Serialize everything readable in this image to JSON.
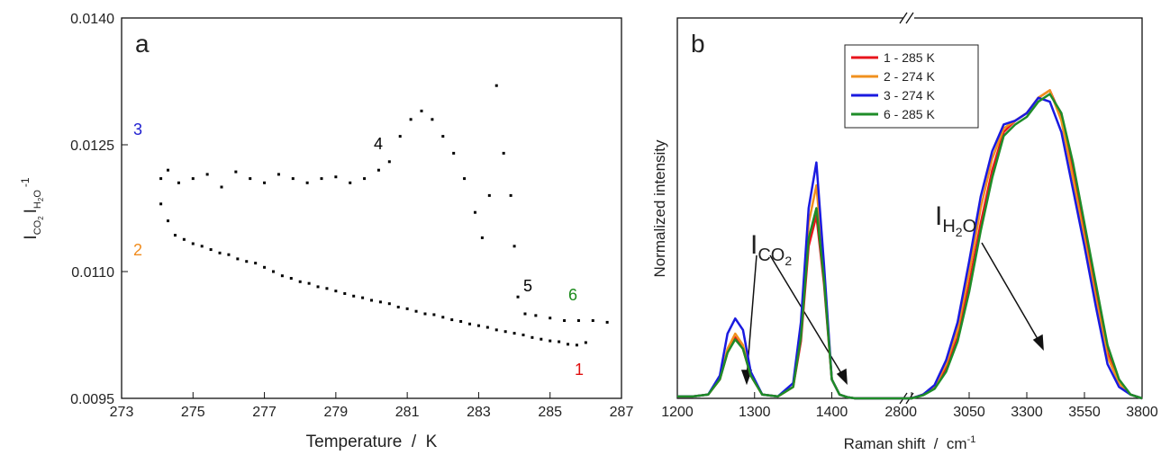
{
  "chart_data": [
    {
      "type": "scatter",
      "panel_label": "a",
      "xlabel": "Temperature  /  K",
      "ylabel_parts": [
        "I",
        "CO",
        "2",
        "I",
        "H",
        "2",
        "O",
        "-1"
      ],
      "xlim": [
        273,
        287
      ],
      "xticks": [
        273,
        275,
        277,
        279,
        281,
        283,
        285,
        287
      ],
      "ylim": [
        0.0095,
        0.014
      ],
      "yticks": [
        0.0095,
        {
          "value": 0.011,
          "label": "0.0110"
        },
        0.0125,
        {
          "value": 0.014,
          "label": "0.0140"
        }
      ],
      "series": [
        {
          "color": "#000000",
          "x": [
            274.1,
            274.3,
            274.5,
            274.75,
            275,
            275.25,
            275.5,
            275.75,
            276,
            276.25,
            276.5,
            276.75,
            277,
            277.25,
            277.5,
            277.75,
            278,
            278.25,
            278.5,
            278.75,
            279,
            279.25,
            279.5,
            279.75,
            280,
            280.25,
            280.5,
            280.75,
            281,
            281.25,
            281.5,
            281.75,
            282,
            282.25,
            282.5,
            282.75,
            283,
            283.25,
            283.5,
            283.75,
            284,
            284.25,
            284.5,
            284.75,
            285,
            285.25,
            285.5,
            285.75,
            286
          ],
          "values": [
            0.0118,
            0.0116,
            0.01143,
            0.01138,
            0.01133,
            0.0113,
            0.01126,
            0.01122,
            0.0112,
            0.01115,
            0.01112,
            0.0111,
            0.01105,
            0.011,
            0.01095,
            0.01092,
            0.01088,
            0.01086,
            0.01082,
            0.0108,
            0.01077,
            0.01074,
            0.01071,
            0.01069,
            0.01066,
            0.01064,
            0.01062,
            0.01058,
            0.01056,
            0.01053,
            0.0105,
            0.01049,
            0.01046,
            0.01043,
            0.01041,
            0.01038,
            0.01036,
            0.01034,
            0.01031,
            0.01029,
            0.01027,
            0.01025,
            0.01022,
            0.0102,
            0.01018,
            0.01017,
            0.01014,
            0.01013,
            0.01016
          ]
        },
        {
          "color": "#000000",
          "x": [
            274.1,
            274.3,
            274.6,
            275,
            275.4,
            275.8,
            276.2,
            276.6,
            277,
            277.4,
            277.8,
            278.2,
            278.6,
            279,
            279.4,
            279.8,
            280.2,
            280.5,
            280.8,
            281.1,
            281.4,
            281.7,
            282,
            282.3,
            282.6,
            282.9,
            283.1,
            283.3,
            283.5,
            283.7,
            283.9,
            284,
            284.1,
            284.3,
            284.6,
            285,
            285.4,
            285.8,
            286.2,
            286.6
          ],
          "values": [
            0.0121,
            0.0122,
            0.01205,
            0.0121,
            0.01215,
            0.012,
            0.01218,
            0.0121,
            0.01205,
            0.01215,
            0.0121,
            0.01205,
            0.0121,
            0.01212,
            0.01205,
            0.0121,
            0.0122,
            0.0123,
            0.0126,
            0.0128,
            0.0129,
            0.0128,
            0.0126,
            0.0124,
            0.0121,
            0.0117,
            0.0114,
            0.0119,
            0.0132,
            0.0124,
            0.0119,
            0.0113,
            0.0107,
            0.0105,
            0.01048,
            0.01045,
            0.01042,
            0.01042,
            0.01042,
            0.0104
          ]
        }
      ],
      "annotations": [
        {
          "text": "3",
          "color": "#2020d0"
        },
        {
          "text": "2",
          "color": "#f08c1e"
        },
        {
          "text": "4",
          "color": "#000000"
        },
        {
          "text": "5",
          "color": "#000000"
        },
        {
          "text": "6",
          "color": "#1a8a1a"
        },
        {
          "text": "1",
          "color": "#e01010"
        }
      ]
    },
    {
      "type": "line",
      "panel_label": "b",
      "xlabel_parts": [
        "Raman shift  /  cm",
        "-1"
      ],
      "ylabel": "Normalized intensity",
      "xlim": [
        [
          1200,
          1495
        ],
        [
          2800,
          3800
        ]
      ],
      "xticks": [
        [
          1200,
          1300,
          1400
        ],
        [
          2800,
          3050,
          3300,
          3550,
          3800
        ]
      ],
      "ylim": [
        0,
        1
      ],
      "legend": "upper center",
      "x": [
        1200,
        1220,
        1240,
        1255,
        1265,
        1275,
        1285,
        1295,
        1310,
        1330,
        1350,
        1360,
        1370,
        1380,
        1390,
        1400,
        1410,
        1420,
        1430,
        2800,
        2850,
        2900,
        2950,
        3000,
        3050,
        3100,
        3150,
        3200,
        3250,
        3300,
        3350,
        3400,
        3450,
        3500,
        3550,
        3600,
        3650,
        3700,
        3750,
        3800
      ],
      "series": [
        {
          "name": "1 - 285 K",
          "color": "#e8141c",
          "values": [
            0.005,
            0.005,
            0.01,
            0.05,
            0.12,
            0.16,
            0.13,
            0.06,
            0.01,
            0.005,
            0.03,
            0.15,
            0.4,
            0.48,
            0.3,
            0.05,
            0.01,
            0.003,
            0,
            0,
            0.01,
            0.03,
            0.08,
            0.16,
            0.3,
            0.46,
            0.6,
            0.7,
            0.73,
            0.75,
            0.79,
            0.81,
            0.74,
            0.6,
            0.44,
            0.28,
            0.12,
            0.04,
            0.01,
            0
          ]
        },
        {
          "name": "2 - 274 K",
          "color": "#f0901e",
          "values": [
            0.005,
            0.005,
            0.01,
            0.05,
            0.13,
            0.17,
            0.14,
            0.06,
            0.01,
            0.005,
            0.03,
            0.17,
            0.46,
            0.56,
            0.33,
            0.05,
            0.01,
            0.003,
            0,
            0,
            0.01,
            0.03,
            0.09,
            0.18,
            0.33,
            0.5,
            0.63,
            0.71,
            0.73,
            0.75,
            0.79,
            0.81,
            0.73,
            0.58,
            0.42,
            0.26,
            0.11,
            0.04,
            0.01,
            0
          ]
        },
        {
          "name": "3 - 274 K",
          "color": "#1a1ae0",
          "values": [
            0.005,
            0.005,
            0.01,
            0.06,
            0.17,
            0.21,
            0.18,
            0.07,
            0.01,
            0.005,
            0.04,
            0.2,
            0.5,
            0.62,
            0.35,
            0.05,
            0.01,
            0.003,
            0,
            0,
            0.01,
            0.035,
            0.1,
            0.2,
            0.36,
            0.53,
            0.65,
            0.72,
            0.73,
            0.75,
            0.79,
            0.78,
            0.7,
            0.55,
            0.4,
            0.24,
            0.09,
            0.03,
            0.01,
            0
          ]
        },
        {
          "name": "6 - 285 K",
          "color": "#1e8c28",
          "values": [
            0.005,
            0.005,
            0.01,
            0.05,
            0.12,
            0.155,
            0.13,
            0.06,
            0.01,
            0.005,
            0.03,
            0.16,
            0.42,
            0.5,
            0.31,
            0.05,
            0.01,
            0.003,
            0,
            0,
            0.008,
            0.025,
            0.07,
            0.15,
            0.28,
            0.44,
            0.58,
            0.69,
            0.72,
            0.74,
            0.78,
            0.8,
            0.75,
            0.62,
            0.46,
            0.3,
            0.14,
            0.05,
            0.01,
            0
          ]
        }
      ],
      "annotation_parts": [
        [
          "I",
          "CO",
          "2"
        ],
        [
          "I",
          "H",
          "2",
          "O"
        ]
      ]
    }
  ]
}
